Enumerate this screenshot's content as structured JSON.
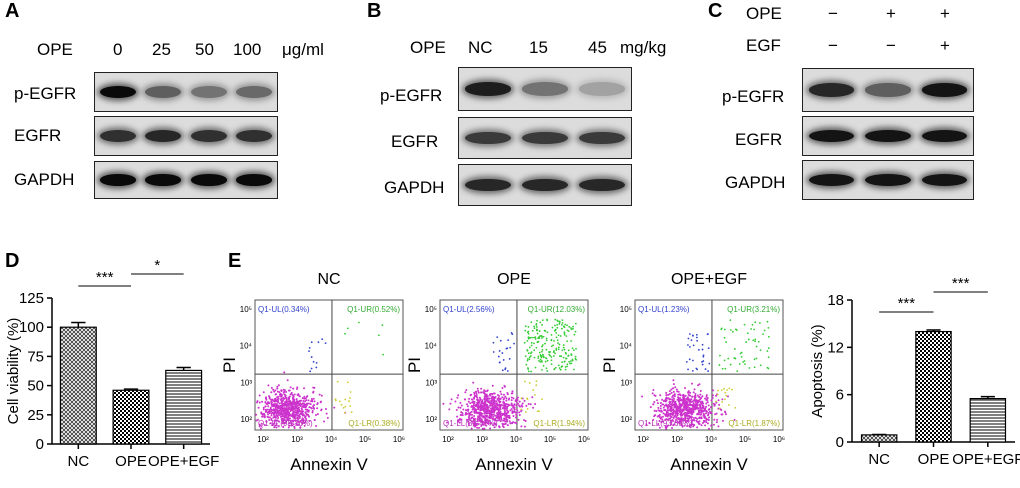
{
  "panels": {
    "A": {
      "letter": "A",
      "treatment": "OPE",
      "doses": [
        "0",
        "25",
        "50",
        "100"
      ],
      "unit": "μg/ml",
      "rows": [
        "p-EGFR",
        "EGFR",
        "GAPDH"
      ],
      "band_intensity": {
        "p-EGFR": [
          1.0,
          0.55,
          0.45,
          0.5
        ],
        "EGFR": [
          0.8,
          0.85,
          0.8,
          0.8
        ],
        "GAPDH": [
          1.0,
          1.0,
          1.0,
          1.0
        ]
      }
    },
    "B": {
      "letter": "B",
      "treatment": "OPE",
      "doses": [
        "NC",
        "15",
        "45"
      ],
      "unit": "mg/kg",
      "rows": [
        "p-EGFR",
        "EGFR",
        "GAPDH"
      ],
      "band_intensity": {
        "p-EGFR": [
          0.9,
          0.45,
          0.2
        ],
        "EGFR": [
          0.75,
          0.75,
          0.75
        ],
        "GAPDH": [
          0.85,
          0.85,
          0.85
        ]
      }
    },
    "C": {
      "letter": "C",
      "conditions": [
        {
          "label": "OPE",
          "values": [
            "−",
            "+",
            "+"
          ]
        },
        {
          "label": "EGF",
          "values": [
            "−",
            "−",
            "+"
          ]
        }
      ],
      "rows": [
        "p-EGFR",
        "EGFR",
        "GAPDH"
      ],
      "band_intensity": {
        "p-EGFR": [
          0.85,
          0.55,
          0.95
        ],
        "EGFR": [
          0.95,
          0.95,
          0.95
        ],
        "GAPDH": [
          0.95,
          0.95,
          0.95
        ]
      }
    },
    "D": {
      "letter": "D"
    },
    "E": {
      "letter": "E",
      "flow_plots": [
        {
          "title": "NC",
          "ul": "Q1-UL(0.34%)",
          "ur": "Q1-UR(0.52%)",
          "ll": "Q1-LL(98.76%)",
          "lr": "Q1-LR(0.38%)"
        },
        {
          "title": "OPE",
          "ul": "Q1-UL(2.56%)",
          "ur": "Q1-UR(12.03%)",
          "ll": "Q1-LL(83.47%)",
          "lr": "Q1-LR(1.94%)"
        },
        {
          "title": "OPE+EGF",
          "ul": "Q1-UL(1.23%)",
          "ur": "Q1-UR(3.21%)",
          "ll": "Q1-LL(93.69%)",
          "lr": "Q1-LR(1.87%)"
        }
      ],
      "flow_xlabel": "Annexin V",
      "flow_ylabel": "PI",
      "flow_xticks": [
        "10²",
        "10³",
        "10⁴",
        "10⁵",
        "10⁶"
      ],
      "flow_yticks": [
        "10²",
        "10³",
        "10⁴",
        "10⁵"
      ]
    }
  },
  "chart_data": [
    {
      "type": "bar",
      "categories": [
        "NC",
        "OPE",
        "OPE+EGF"
      ],
      "values": [
        100,
        46,
        63
      ],
      "errors": [
        4,
        1,
        2.5
      ],
      "ylabel": "Cell viability (%)",
      "ylim": [
        0,
        125
      ],
      "yticks": [
        "0",
        "25",
        "50",
        "75",
        "100",
        "125"
      ],
      "significance": [
        {
          "from": "NC",
          "to": "OPE",
          "label": "***"
        },
        {
          "from": "OPE",
          "to": "OPE+EGF",
          "label": "*"
        }
      ]
    },
    {
      "type": "bar",
      "categories": [
        "NC",
        "OPE",
        "OPE+EGF"
      ],
      "values": [
        0.9,
        14.0,
        5.5
      ],
      "errors": [
        0.05,
        0.2,
        0.25
      ],
      "ylabel": "Apoptosis (%)",
      "ylim": [
        0,
        18
      ],
      "yticks": [
        "0",
        "6",
        "12",
        "18"
      ],
      "significance": [
        {
          "from": "NC",
          "to": "OPE",
          "label": "***"
        },
        {
          "from": "OPE",
          "to": "OPE+EGF",
          "label": "***"
        }
      ]
    }
  ]
}
